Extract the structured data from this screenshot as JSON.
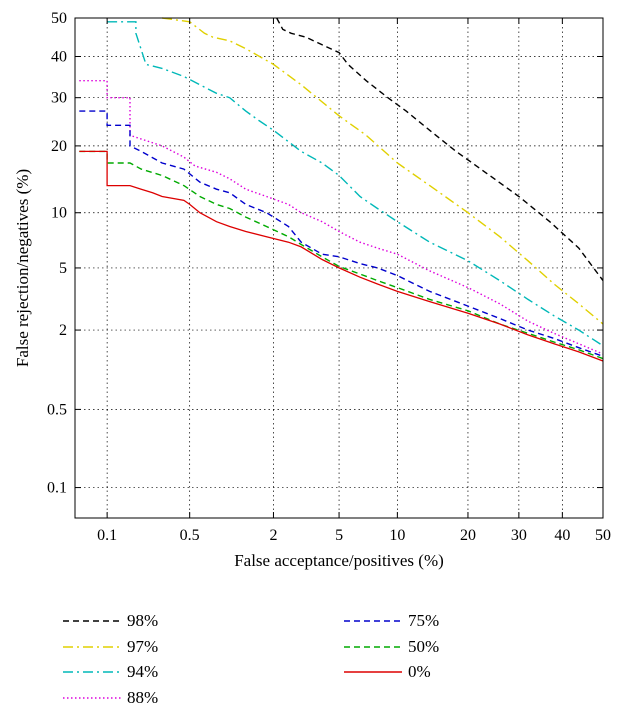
{
  "chart_data": {
    "type": "line",
    "xlabel": "False acceptance/positives (%)",
    "ylabel": "False rejection/negatives (%)",
    "xscale": "normal-deviate",
    "yscale": "normal-deviate",
    "xlim": [
      0.05,
      50
    ],
    "ylim": [
      0.05,
      50
    ],
    "xticks": [
      0.1,
      0.5,
      2,
      5,
      10,
      20,
      30,
      40,
      50
    ],
    "xtick_labels": [
      "0.1",
      "0.5",
      "2",
      "5",
      "10",
      "20",
      "30",
      "40",
      "50"
    ],
    "yticks": [
      0.1,
      0.5,
      2,
      5,
      10,
      20,
      30,
      40,
      50
    ],
    "ytick_labels": [
      "0.1",
      "0.5",
      "2",
      "5",
      "10",
      "20",
      "30",
      "40",
      "50"
    ],
    "grid": true,
    "legend_placement": "below",
    "series": [
      {
        "name": "98%",
        "color": "#000000",
        "dash": "dashed",
        "points": [
          [
            2.1,
            50
          ],
          [
            2.3,
            47
          ],
          [
            2.6,
            46
          ],
          [
            3.2,
            45
          ],
          [
            4.0,
            43
          ],
          [
            5.0,
            41
          ],
          [
            5.6,
            38
          ],
          [
            7,
            34
          ],
          [
            9,
            30
          ],
          [
            11,
            27
          ],
          [
            14,
            23
          ],
          [
            18,
            19
          ],
          [
            24,
            15
          ],
          [
            30,
            12
          ],
          [
            37,
            9
          ],
          [
            44,
            6.5
          ],
          [
            50,
            4.2
          ]
        ]
      },
      {
        "name": "97%",
        "color": "#e0d000",
        "dash": "dashdot",
        "points": [
          [
            0.3,
            50
          ],
          [
            0.5,
            49
          ],
          [
            0.65,
            46
          ],
          [
            0.75,
            45
          ],
          [
            1.0,
            44
          ],
          [
            1.3,
            42
          ],
          [
            2.0,
            38
          ],
          [
            3,
            33
          ],
          [
            5,
            26
          ],
          [
            7,
            22
          ],
          [
            10,
            17
          ],
          [
            14,
            13.5
          ],
          [
            20,
            10
          ],
          [
            26,
            7.5
          ],
          [
            32,
            5.5
          ],
          [
            38,
            4
          ],
          [
            44,
            3
          ],
          [
            50,
            2.2
          ]
        ]
      },
      {
        "name": "94%",
        "color": "#00b8b8",
        "dash": "dashdot",
        "points": [
          [
            0.1,
            49
          ],
          [
            0.18,
            49
          ],
          [
            0.18,
            46
          ],
          [
            0.22,
            38
          ],
          [
            0.3,
            37
          ],
          [
            0.45,
            35
          ],
          [
            0.6,
            33
          ],
          [
            0.8,
            31
          ],
          [
            1.0,
            30
          ],
          [
            1.3,
            27
          ],
          [
            1.6,
            25
          ],
          [
            2.0,
            23
          ],
          [
            3,
            19
          ],
          [
            4,
            17
          ],
          [
            5,
            15
          ],
          [
            6.5,
            12
          ],
          [
            8,
            10.5
          ],
          [
            10,
            9
          ],
          [
            14,
            7
          ],
          [
            20,
            5.5
          ],
          [
            26,
            4.2
          ],
          [
            32,
            3.2
          ],
          [
            38,
            2.5
          ],
          [
            44,
            2.0
          ],
          [
            50,
            1.55
          ]
        ]
      },
      {
        "name": "88%",
        "color": "#dd00dd",
        "dash": "dotted",
        "points": [
          [
            0.055,
            34
          ],
          [
            0.1,
            34
          ],
          [
            0.1,
            30
          ],
          [
            0.16,
            30
          ],
          [
            0.16,
            22
          ],
          [
            0.3,
            20
          ],
          [
            0.45,
            18
          ],
          [
            0.55,
            16.5
          ],
          [
            0.8,
            15.5
          ],
          [
            1.0,
            14.5
          ],
          [
            1.3,
            13
          ],
          [
            1.8,
            12
          ],
          [
            2.5,
            11
          ],
          [
            3,
            10
          ],
          [
            4,
            9
          ],
          [
            5,
            8
          ],
          [
            6.5,
            7
          ],
          [
            8,
            6.5
          ],
          [
            10,
            6
          ],
          [
            14,
            4.8
          ],
          [
            20,
            3.8
          ],
          [
            26,
            3.0
          ],
          [
            32,
            2.3
          ],
          [
            38,
            1.9
          ],
          [
            44,
            1.6
          ],
          [
            50,
            1.35
          ]
        ]
      },
      {
        "name": "75%",
        "color": "#0000cc",
        "dash": "dashed",
        "points": [
          [
            0.055,
            27
          ],
          [
            0.1,
            27
          ],
          [
            0.1,
            24
          ],
          [
            0.16,
            24
          ],
          [
            0.16,
            20
          ],
          [
            0.2,
            19
          ],
          [
            0.3,
            17
          ],
          [
            0.45,
            16
          ],
          [
            0.6,
            14
          ],
          [
            0.8,
            13
          ],
          [
            1.0,
            12.5
          ],
          [
            1.3,
            11
          ],
          [
            1.8,
            10
          ],
          [
            2.5,
            8.5
          ],
          [
            3,
            7
          ],
          [
            4,
            6
          ],
          [
            5,
            5.8
          ],
          [
            6.5,
            5.3
          ],
          [
            8,
            5
          ],
          [
            10,
            4.5
          ],
          [
            14,
            3.6
          ],
          [
            20,
            2.9
          ],
          [
            26,
            2.4
          ],
          [
            32,
            2.0
          ],
          [
            38,
            1.75
          ],
          [
            44,
            1.5
          ],
          [
            50,
            1.3
          ]
        ]
      },
      {
        "name": "50%",
        "color": "#00aa00",
        "dash": "dashed",
        "points": [
          [
            0.055,
            19
          ],
          [
            0.1,
            19
          ],
          [
            0.1,
            17
          ],
          [
            0.16,
            17
          ],
          [
            0.2,
            16
          ],
          [
            0.3,
            15
          ],
          [
            0.45,
            13.5
          ],
          [
            0.6,
            12
          ],
          [
            0.8,
            11
          ],
          [
            1.0,
            10.5
          ],
          [
            1.3,
            9.5
          ],
          [
            1.8,
            8.5
          ],
          [
            2.5,
            7.5
          ],
          [
            3,
            6.8
          ],
          [
            4,
            5.8
          ],
          [
            5,
            5.1
          ],
          [
            6.5,
            4.6
          ],
          [
            8,
            4.2
          ],
          [
            10,
            3.8
          ],
          [
            14,
            3.2
          ],
          [
            20,
            2.7
          ],
          [
            26,
            2.2
          ],
          [
            32,
            1.9
          ],
          [
            38,
            1.65
          ],
          [
            44,
            1.45
          ],
          [
            50,
            1.25
          ]
        ]
      },
      {
        "name": "0%",
        "color": "#dd0000",
        "dash": "solid",
        "points": [
          [
            0.055,
            19
          ],
          [
            0.1,
            19
          ],
          [
            0.1,
            13.5
          ],
          [
            0.16,
            13.5
          ],
          [
            0.2,
            13
          ],
          [
            0.25,
            12.5
          ],
          [
            0.3,
            12
          ],
          [
            0.45,
            11.5
          ],
          [
            0.5,
            11
          ],
          [
            0.6,
            10
          ],
          [
            0.8,
            9
          ],
          [
            1.0,
            8.5
          ],
          [
            1.3,
            8
          ],
          [
            1.8,
            7.5
          ],
          [
            2.5,
            7
          ],
          [
            3,
            6.6
          ],
          [
            4,
            5.6
          ],
          [
            5,
            5.0
          ],
          [
            6.5,
            4.4
          ],
          [
            8,
            4.0
          ],
          [
            10,
            3.6
          ],
          [
            14,
            3.1
          ],
          [
            20,
            2.6
          ],
          [
            26,
            2.2
          ],
          [
            32,
            1.85
          ],
          [
            38,
            1.6
          ],
          [
            44,
            1.4
          ],
          [
            50,
            1.2
          ]
        ]
      }
    ]
  }
}
